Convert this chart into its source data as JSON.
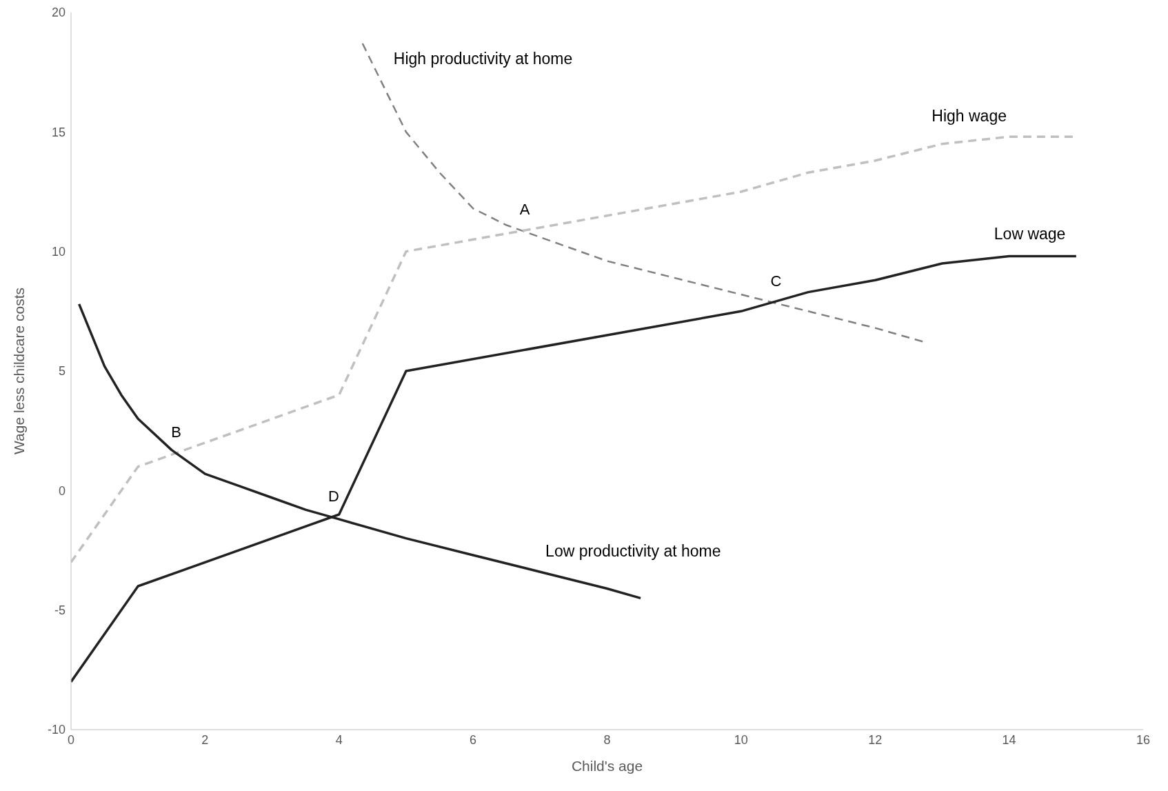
{
  "chart_data": {
    "type": "line",
    "xlabel": "Child's age",
    "ylabel": "Wage less childcare costs",
    "xlim": [
      0,
      16
    ],
    "xticks": [
      0,
      2,
      4,
      6,
      8,
      10,
      12,
      14,
      16
    ],
    "ylim": [
      -10,
      20
    ],
    "yticks": [
      -10,
      -5,
      0,
      5,
      10,
      15,
      20
    ],
    "legend": false,
    "marker": "none",
    "series": [
      {
        "name": "High productivity at home",
        "color": "#808080",
        "line_style": "dashed",
        "x": [
          4.35,
          5,
          5.5,
          6,
          6.5,
          7,
          8,
          9,
          10,
          11,
          12,
          12.75
        ],
        "values": [
          18.7,
          15,
          13.3,
          11.8,
          11.1,
          10.6,
          9.6,
          8.9,
          8.2,
          7.5,
          6.8,
          6.2
        ]
      },
      {
        "name": "High wage",
        "color": "#c0c0c0",
        "line_style": "dashed",
        "x": [
          0,
          1,
          4,
          5,
          10,
          11,
          12,
          13,
          14,
          15
        ],
        "values": [
          -3,
          1,
          4,
          10,
          12.5,
          13.3,
          13.8,
          14.5,
          14.8,
          14.8
        ]
      },
      {
        "name": "Low wage",
        "color": "#222222",
        "line_style": "solid",
        "x": [
          0,
          1,
          4,
          5,
          10,
          11,
          12,
          13,
          14,
          15
        ],
        "values": [
          -8,
          -4,
          -1,
          5,
          7.5,
          8.3,
          8.8,
          9.5,
          9.8,
          9.8
        ]
      },
      {
        "name": "Low productivity at home",
        "color": "#222222",
        "line_style": "solid",
        "x": [
          0.12,
          0.5,
          0.75,
          1,
          1.5,
          2,
          2.5,
          3,
          3.5,
          4,
          5,
          6,
          7,
          8,
          8.5
        ],
        "values": [
          7.8,
          5.2,
          4,
          3,
          1.7,
          0.7,
          0.2,
          -0.3,
          -0.8,
          -1.2,
          -2,
          -2.7,
          -3.4,
          -4.1,
          -4.5
        ]
      }
    ],
    "annotations": [
      {
        "text": "A",
        "x": 6.75,
        "y": 10.9
      },
      {
        "text": "B",
        "x": 1.55,
        "y": 1.6
      },
      {
        "text": "C",
        "x": 10.5,
        "y": 7.9
      },
      {
        "text": "D",
        "x": 3.9,
        "y": -1.1
      }
    ]
  }
}
